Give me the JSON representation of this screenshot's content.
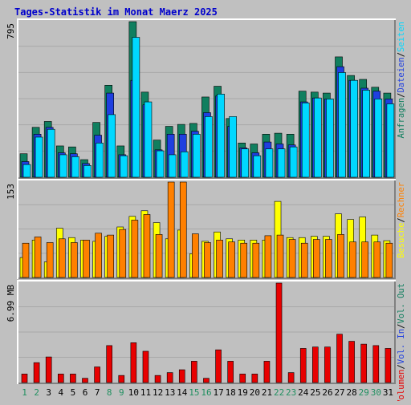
{
  "title": "Tages-Statistik im Monat Maerz 2025",
  "colors": {
    "background": "#c0c0c0",
    "panel": "#c0c0c0",
    "grid": "#a8a8a8",
    "title": "#0000cc",
    "anfragen": "#107f5f",
    "dateien": "#1f3fe0",
    "seiten": "#00d8ff",
    "besuche": "#ffff00",
    "rechner": "#ff8000",
    "volumen": "#e80000",
    "weekend": "#209060",
    "weekday": "#000000"
  },
  "chart_data": [
    {
      "type": "bar",
      "name": "top",
      "max_label": "795",
      "ylim": [
        0,
        795
      ],
      "grid": true,
      "legend": "right-vertical",
      "categories": [
        "1",
        "2",
        "3",
        "4",
        "5",
        "6",
        "7",
        "8",
        "9",
        "10",
        "11",
        "12",
        "13",
        "14",
        "15",
        "16",
        "17",
        "18",
        "19",
        "20",
        "21",
        "22",
        "23",
        "24",
        "25",
        "26",
        "27",
        "28",
        "29",
        "30",
        "31"
      ],
      "series": [
        {
          "name": "Anfragen",
          "color": "#107f5f",
          "values": [
            120,
            255,
            285,
            160,
            155,
            90,
            280,
            470,
            160,
            795,
            435,
            190,
            260,
            270,
            275,
            410,
            465,
            300,
            175,
            170,
            220,
            225,
            220,
            440,
            435,
            430,
            615,
            520,
            500,
            460,
            430
          ]
        },
        {
          "name": "Dateien",
          "color": "#1f3fe0",
          "values": [
            80,
            220,
            255,
            125,
            120,
            70,
            215,
            430,
            115,
            495,
            370,
            140,
            220,
            220,
            235,
            330,
            415,
            260,
            150,
            125,
            180,
            170,
            165,
            385,
            405,
            400,
            565,
            495,
            455,
            440,
            400
          ]
        },
        {
          "name": "Seiten",
          "color": "#00d8ff",
          "values": [
            65,
            205,
            245,
            115,
            105,
            60,
            175,
            320,
            110,
            715,
            385,
            135,
            115,
            130,
            220,
            310,
            425,
            310,
            145,
            110,
            145,
            145,
            155,
            380,
            405,
            400,
            535,
            495,
            445,
            400,
            375
          ]
        }
      ]
    },
    {
      "type": "bar",
      "name": "middle",
      "max_label": "153",
      "ylim": [
        0,
        153
      ],
      "grid": true,
      "legend": "right-vertical",
      "categories": [
        "1",
        "2",
        "3",
        "4",
        "5",
        "6",
        "7",
        "8",
        "9",
        "10",
        "11",
        "12",
        "13",
        "14",
        "15",
        "16",
        "17",
        "18",
        "19",
        "20",
        "21",
        "22",
        "23",
        "24",
        "25",
        "26",
        "27",
        "28",
        "29",
        "30",
        "31"
      ],
      "series": [
        {
          "name": "Besuche",
          "color": "#ffff00",
          "values": [
            32,
            60,
            25,
            79,
            64,
            60,
            58,
            66,
            81,
            98,
            107,
            88,
            62,
            76,
            38,
            58,
            73,
            62,
            60,
            60,
            60,
            122,
            64,
            64,
            66,
            66,
            102,
            93,
            97,
            68,
            59
          ]
        },
        {
          "name": "Rechner",
          "color": "#ff8000",
          "values": [
            55,
            65,
            56,
            62,
            56,
            60,
            71,
            68,
            77,
            92,
            101,
            69,
            153,
            153,
            70,
            56,
            60,
            57,
            55,
            55,
            67,
            68,
            61,
            55,
            61,
            61,
            69,
            57,
            57,
            57,
            55
          ]
        }
      ]
    },
    {
      "type": "bar",
      "name": "bottom",
      "max_label": "6.99 MB",
      "ylim": [
        0,
        6.99
      ],
      "grid": true,
      "legend": "right-vertical",
      "categories": [
        "1",
        "2",
        "3",
        "4",
        "5",
        "6",
        "7",
        "8",
        "9",
        "10",
        "11",
        "12",
        "13",
        "14",
        "15",
        "16",
        "17",
        "18",
        "19",
        "20",
        "21",
        "22",
        "23",
        "24",
        "25",
        "26",
        "27",
        "28",
        "29",
        "30",
        "31"
      ],
      "series": [
        {
          "name": "Volumen",
          "color": "#e80000",
          "values": [
            0.6,
            1.4,
            1.8,
            0.6,
            0.6,
            0.3,
            1.1,
            2.6,
            0.5,
            2.8,
            2.2,
            0.5,
            0.7,
            0.9,
            1.5,
            0.3,
            2.3,
            1.5,
            0.6,
            0.6,
            1.5,
            6.99,
            0.7,
            2.4,
            2.5,
            2.5,
            3.4,
            2.9,
            2.7,
            2.6,
            2.4
          ]
        }
      ]
    }
  ],
  "x_labels": [
    {
      "label": "1",
      "weekend": true
    },
    {
      "label": "2",
      "weekend": true
    },
    {
      "label": "3",
      "weekend": false
    },
    {
      "label": "4",
      "weekend": false
    },
    {
      "label": "5",
      "weekend": false
    },
    {
      "label": "6",
      "weekend": false
    },
    {
      "label": "7",
      "weekend": false
    },
    {
      "label": "8",
      "weekend": true
    },
    {
      "label": "9",
      "weekend": true
    },
    {
      "label": "10",
      "weekend": false
    },
    {
      "label": "11",
      "weekend": false
    },
    {
      "label": "12",
      "weekend": false
    },
    {
      "label": "13",
      "weekend": false
    },
    {
      "label": "14",
      "weekend": false
    },
    {
      "label": "15",
      "weekend": true
    },
    {
      "label": "16",
      "weekend": true
    },
    {
      "label": "17",
      "weekend": false
    },
    {
      "label": "18",
      "weekend": false
    },
    {
      "label": "19",
      "weekend": false
    },
    {
      "label": "20",
      "weekend": false
    },
    {
      "label": "21",
      "weekend": false
    },
    {
      "label": "22",
      "weekend": true
    },
    {
      "label": "23",
      "weekend": true
    },
    {
      "label": "24",
      "weekend": false
    },
    {
      "label": "25",
      "weekend": false
    },
    {
      "label": "26",
      "weekend": false
    },
    {
      "label": "27",
      "weekend": false
    },
    {
      "label": "28",
      "weekend": false
    },
    {
      "label": "29",
      "weekend": true
    },
    {
      "label": "30",
      "weekend": true
    },
    {
      "label": "31",
      "weekend": false
    }
  ],
  "legends": {
    "top": [
      {
        "text": "Anfragen",
        "color": "#107f5f"
      },
      {
        "text": "/",
        "color": "#000000"
      },
      {
        "text": "Dateien",
        "color": "#1f3fe0"
      },
      {
        "text": "/",
        "color": "#000000"
      },
      {
        "text": "Seiten",
        "color": "#00d8ff"
      }
    ],
    "middle": [
      {
        "text": "Besuche",
        "color": "#ffff00"
      },
      {
        "text": "/",
        "color": "#000000"
      },
      {
        "text": "Rechner",
        "color": "#ff8000"
      }
    ],
    "bottom": [
      {
        "text": "Volumen",
        "color": "#e80000"
      },
      {
        "text": "/",
        "color": "#000000"
      },
      {
        "text": "Vol. In",
        "color": "#1f3fe0"
      },
      {
        "text": "/",
        "color": "#000000"
      },
      {
        "text": "Vol. Out",
        "color": "#107f5f"
      }
    ]
  }
}
